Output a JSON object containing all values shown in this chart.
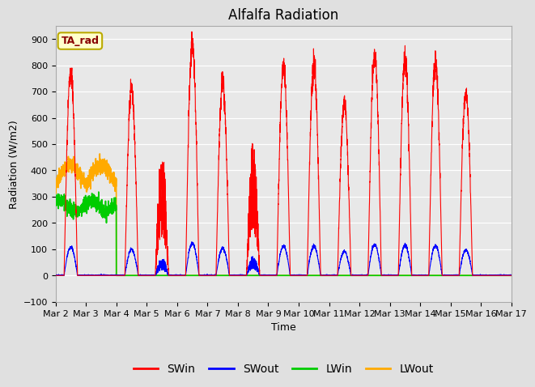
{
  "title": "Alfalfa Radiation",
  "xlabel": "Time",
  "ylabel": "Radiation (W/m2)",
  "ylim": [
    -100,
    950
  ],
  "yticks": [
    -100,
    0,
    100,
    200,
    300,
    400,
    500,
    600,
    700,
    800,
    900
  ],
  "x_tick_labels": [
    "Mar 2",
    "Mar 3",
    "Mar 4",
    "Mar 5",
    "Mar 6",
    "Mar 7",
    "Mar 8",
    "Mar 9",
    "Mar 10",
    "Mar 11",
    "Mar 12",
    "Mar 13",
    "Mar 14",
    "Mar 15",
    "Mar 16",
    "Mar 17"
  ],
  "annotation_text": "TA_rad",
  "annotation_bg": "#ffffcc",
  "annotation_border": "#bbaa00",
  "legend_items": [
    {
      "label": "SWin",
      "color": "#ff0000"
    },
    {
      "label": "SWout",
      "color": "#0000ff"
    },
    {
      "label": "LWin",
      "color": "#00cc00"
    },
    {
      "label": "LWout",
      "color": "#ffaa00"
    }
  ],
  "fig_bg": "#e0e0e0",
  "ax_bg": "#e8e8e8",
  "grid_color": "#ffffff",
  "swin_peaks": [
    780,
    0,
    710,
    490,
    880,
    740,
    520,
    800,
    800,
    650,
    840,
    830,
    810,
    690,
    0
  ],
  "swin_cloudy": [
    0,
    0,
    0,
    1,
    0,
    0,
    1,
    0,
    0,
    0,
    0,
    0,
    0,
    0,
    0
  ],
  "title_fontsize": 12,
  "axis_fontsize": 9,
  "tick_fontsize": 8,
  "legend_fontsize": 10
}
